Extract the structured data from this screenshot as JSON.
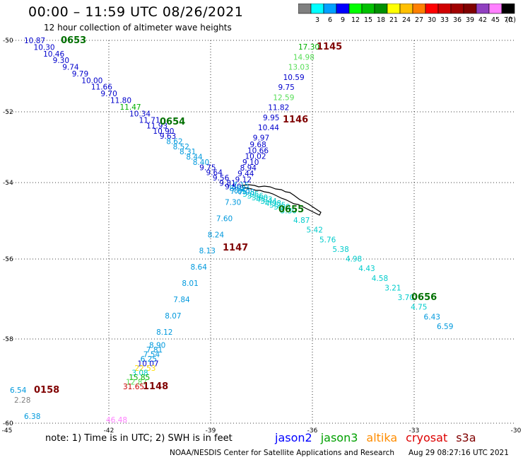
{
  "header": {
    "title": "00:00 – 11:59 UTC 08/26/2021",
    "subtitle": "12 hour collection of altimeter wave heights"
  },
  "colorbar": {
    "unit": "(ft)",
    "colors": [
      "#808080",
      "#00ffff",
      "#00a0ff",
      "#0000ff",
      "#00ff00",
      "#00c000",
      "#009000",
      "#ffff00",
      "#ffc000",
      "#ff8000",
      "#ff0000",
      "#d00000",
      "#a00000",
      "#800000",
      "#9040c0",
      "#ff80ff",
      "#000000"
    ],
    "labels": [
      "3",
      "6",
      "9",
      "12",
      "15",
      "18",
      "21",
      "24",
      "27",
      "30",
      "33",
      "36",
      "39",
      "42",
      "45",
      "70"
    ]
  },
  "map": {
    "lon_ticks": [
      "-45",
      "-42",
      "-39",
      "-36",
      "-33",
      "-30"
    ],
    "lat_ticks": [
      "-50",
      "-52",
      "-54",
      "-56",
      "-58",
      "-60"
    ],
    "track1": {
      "color": "#0000cc",
      "values": [
        "10.87",
        "10.30",
        "10.46",
        "9.30",
        "9.74",
        "9.79",
        "10.00",
        "11.66",
        "9.70",
        "11.80",
        "11.47",
        "10.34",
        "11.71",
        "11.93",
        "10.90",
        "9.63",
        "8.62",
        "8.52",
        "8.31",
        "8.44",
        "8.40",
        "9.75",
        "9.64",
        "9.56",
        "9.81",
        "9.80",
        "8.92",
        "8.43",
        "7.08",
        "5.05",
        "3.56",
        "3.60",
        "4.03",
        "3.44",
        "4.98",
        "5.25",
        "5.50",
        "5.30",
        "4.87",
        "5.42",
        "5.76",
        "5.38",
        "4.98",
        "4.43",
        "4.58",
        "3.21",
        "3.70",
        "4.75",
        "6.43",
        "6.59"
      ],
      "colors": [
        "#0000cc",
        "#0000cc",
        "#0000cc",
        "#0000cc",
        "#0000cc",
        "#0000cc",
        "#0000cc",
        "#0000cc",
        "#0000cc",
        "#0000cc",
        "#00b000",
        "#0000cc",
        "#0000cc",
        "#0000cc",
        "#0000cc",
        "#0000cc",
        "#0099dd",
        "#0099dd",
        "#0099dd",
        "#0099dd",
        "#0099dd",
        "#0000cc",
        "#0000cc",
        "#0000cc",
        "#0000cc",
        "#0000cc",
        "#0099dd",
        "#0099dd",
        "#0099dd",
        "#00cccc",
        "#00cccc",
        "#00cccc",
        "#00cccc",
        "#00cccc",
        "#00cccc",
        "#00cccc",
        "#00cccc",
        "#00cccc",
        "#00cccc",
        "#00cccc",
        "#00cccc",
        "#00cccc",
        "#00cccc",
        "#00cccc",
        "#00cccc",
        "#00cccc",
        "#00cccc",
        "#00cccc",
        "#0099dd",
        "#0099dd"
      ]
    },
    "track2": {
      "values": [
        "17.30",
        "14.98",
        "13.03",
        "10.59",
        "9.75",
        "12.59",
        "11.82",
        "9.95",
        "10.44",
        "9.97",
        "9.68",
        "10.66",
        "10.02",
        "9.10",
        "8.94",
        "9.44",
        "9.12",
        "7.15",
        "7.85",
        "7.30",
        "7.60",
        "8.24",
        "8.13",
        "8.64",
        "8.01",
        "7.84",
        "8.07",
        "8.12",
        "8.90",
        "7.81",
        "7.54",
        "6.25",
        "10.07",
        "22.53",
        "3.08",
        "15.85",
        "12.87",
        "31.65"
      ],
      "colors": [
        "#00b000",
        "#55dd55",
        "#55dd55",
        "#0000cc",
        "#0000cc",
        "#55dd55",
        "#0000cc",
        "#0000cc",
        "#0000cc",
        "#0000cc",
        "#0000cc",
        "#0000cc",
        "#0000cc",
        "#0000cc",
        "#0000cc",
        "#0000cc",
        "#0000cc",
        "#0099dd",
        "#0099dd",
        "#0099dd",
        "#0099dd",
        "#0099dd",
        "#0099dd",
        "#0099dd",
        "#0099dd",
        "#0099dd",
        "#0099dd",
        "#0099dd",
        "#0099dd",
        "#0099dd",
        "#0099dd",
        "#0099dd",
        "#0000cc",
        "#ffdd00",
        "#00cccc",
        "#00b000",
        "#55dd55",
        "#cc0000"
      ]
    },
    "time_labels": [
      {
        "text": "0653",
        "color": "#007000"
      },
      {
        "text": "0654",
        "color": "#007000"
      },
      {
        "text": "0655",
        "color": "#007000"
      },
      {
        "text": "0656",
        "color": "#007000"
      },
      {
        "text": "1145",
        "color": "#800000"
      },
      {
        "text": "1146",
        "color": "#800000"
      },
      {
        "text": "1147",
        "color": "#800000"
      },
      {
        "text": "1148",
        "color": "#800000"
      },
      {
        "text": "0158",
        "color": "#800000"
      }
    ],
    "isolated": [
      {
        "text": "6.54",
        "color": "#0099dd"
      },
      {
        "text": "2.28",
        "color": "#808080"
      },
      {
        "text": "6.38",
        "color": "#0099dd"
      },
      {
        "text": "46.48",
        "color": "#ff80ff"
      }
    ]
  },
  "footer": {
    "note": "note:  1) Time is in UTC;  2) SWH is in feet",
    "legend": [
      {
        "name": "jason2",
        "color": "#0000ff"
      },
      {
        "name": "jason3",
        "color": "#00a000"
      },
      {
        "name": "altika",
        "color": "#ff8c00"
      },
      {
        "name": "cryosat",
        "color": "#dd0000"
      },
      {
        "name": "s3a",
        "color": "#800000"
      }
    ],
    "credit": "NOAA/NESDIS Center for Satellite Applications and Research",
    "timestamp": "Aug 29 08:27:16 UTC 2021"
  }
}
